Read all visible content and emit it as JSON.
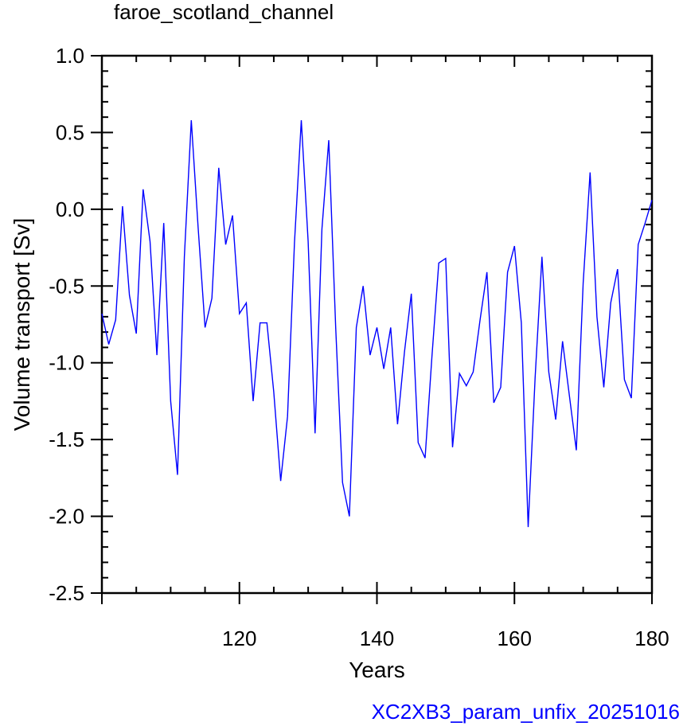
{
  "chart_data": {
    "type": "line",
    "title": "faroe_scotland_channel",
    "xlabel": "Years",
    "ylabel": "Volume transport [Sv]",
    "credit": "XC2XB3_param_unfix_20251016",
    "xlim": [
      100,
      180
    ],
    "ylim": [
      -2.5,
      1.0
    ],
    "x_ticks": [
      120,
      140,
      160,
      180
    ],
    "y_ticks": [
      1.0,
      0.5,
      0.0,
      -0.5,
      -1.0,
      -1.5,
      -2.0,
      -2.5
    ],
    "x_tick_labels": [
      "120",
      "140",
      "160",
      "180"
    ],
    "y_tick_labels": [
      "1.0",
      "0.5",
      "0.0",
      "-0.5",
      "-1.0",
      "-1.5",
      "-2.0",
      "-2.5"
    ],
    "grid": false,
    "series": [
      {
        "color": "#0000ff",
        "x": [
          100,
          101,
          102,
          103,
          104,
          105,
          106,
          107,
          108,
          109,
          110,
          111,
          112,
          113,
          114,
          115,
          116,
          117,
          118,
          119,
          120,
          121,
          122,
          123,
          124,
          125,
          126,
          127,
          128,
          129,
          130,
          131,
          132,
          133,
          134,
          135,
          136,
          137,
          138,
          139,
          140,
          141,
          142,
          143,
          144,
          145,
          146,
          147,
          148,
          149,
          150,
          151,
          152,
          153,
          154,
          155,
          156,
          157,
          158,
          159,
          160,
          161,
          162,
          163,
          164,
          165,
          166,
          167,
          168,
          169,
          170,
          171,
          172,
          173,
          174,
          175,
          176,
          177,
          178,
          179,
          180
        ],
        "values": [
          -0.68,
          -0.88,
          -0.72,
          0.02,
          -0.56,
          -0.81,
          0.13,
          -0.21,
          -0.95,
          -0.09,
          -1.25,
          -1.73,
          -0.31,
          0.58,
          -0.12,
          -0.77,
          -0.58,
          0.27,
          -0.23,
          -0.04,
          -0.68,
          -0.61,
          -1.25,
          -0.74,
          -0.74,
          -1.19,
          -1.77,
          -1.35,
          -0.22,
          0.58,
          -0.21,
          -1.46,
          -0.13,
          0.45,
          -0.77,
          -1.78,
          -2.0,
          -0.77,
          -0.5,
          -0.95,
          -0.77,
          -1.04,
          -0.77,
          -1.4,
          -0.93,
          -0.55,
          -1.52,
          -1.62,
          -0.96,
          -0.35,
          -0.32,
          -1.55,
          -1.07,
          -1.15,
          -1.06,
          -0.72,
          -0.41,
          -1.26,
          -1.16,
          -0.41,
          -0.24,
          -0.74,
          -2.07,
          -1.1,
          -0.31,
          -1.06,
          -1.37,
          -0.86,
          -1.22,
          -1.57,
          -0.48,
          0.24,
          -0.7,
          -1.16,
          -0.61,
          -0.39,
          -1.11,
          -1.23,
          -0.23,
          -0.09,
          0.06
        ]
      }
    ]
  }
}
